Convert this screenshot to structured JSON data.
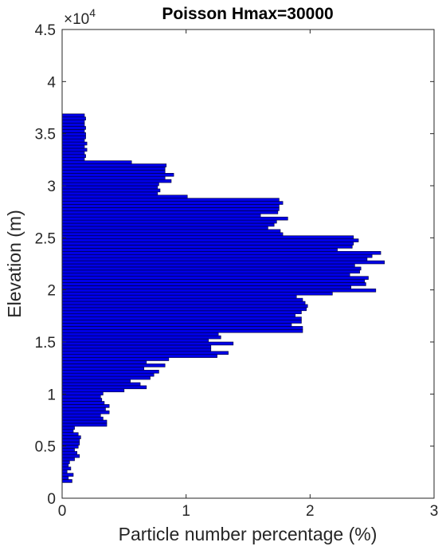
{
  "chart_data": {
    "type": "bar",
    "orientation": "horizontal",
    "title": "Poisson Hmax=30000",
    "xlabel": "Particle number percentage (%)",
    "ylabel": "Elevation (m)",
    "xlim": [
      0,
      3
    ],
    "ylim": [
      0,
      45000
    ],
    "x_ticks": [
      "0",
      "1",
      "2",
      "3"
    ],
    "y_ticks": [
      "0",
      "0.5",
      "1",
      "1.5",
      "2",
      "2.5",
      "3",
      "3.5",
      "4",
      "4.5"
    ],
    "y_tick_values": [
      0,
      5000,
      10000,
      15000,
      20000,
      25000,
      30000,
      35000,
      40000,
      45000
    ],
    "y_exponent_label": "×10",
    "y_exponent_power": "4",
    "bar_color": "#0000e6",
    "bar_edge_color": "#000033",
    "bar_height_m": 300,
    "grid": false,
    "box": true,
    "series": [
      {
        "elevations_m": [
          1650,
          1950,
          2250,
          2550,
          2850,
          3150,
          3450,
          3750,
          4050,
          4350,
          4650,
          4950,
          5250,
          5550,
          5850,
          6150,
          6450,
          6750,
          7050,
          7350,
          7650,
          7950,
          8250,
          8550,
          8850,
          9150,
          9450,
          9750,
          10050,
          10350,
          10650,
          10950,
          11250,
          11550,
          11850,
          12150,
          12450,
          12750,
          13050,
          13350,
          13650,
          13950,
          14250,
          14550,
          14850,
          15150,
          15450,
          15750,
          16050,
          16350,
          16650,
          16950,
          17250,
          17550,
          17850,
          18150,
          18450,
          18750,
          19050,
          19350,
          19650,
          19950,
          20250,
          20550,
          20850,
          21150,
          21450,
          21750,
          22050,
          22350,
          22650,
          22950,
          23250,
          23550,
          23850,
          24150,
          24450,
          24750,
          25050,
          25350,
          25650,
          25950,
          26250,
          26550,
          26850,
          27150,
          27450,
          27750,
          28050,
          28350,
          28650,
          28950,
          29250,
          29550,
          29850,
          30150,
          30450,
          30750,
          31050,
          31350,
          31650,
          31950,
          32250,
          32550,
          32850,
          33150,
          33450,
          33750,
          34050,
          34350,
          34650,
          34950,
          35250,
          35550,
          35850,
          36150,
          36450,
          36750
        ],
        "values": [
          0.08,
          0.05,
          0.09,
          0.04,
          0.07,
          0.05,
          0.06,
          0.1,
          0.14,
          0.12,
          0.1,
          0.13,
          0.14,
          0.14,
          0.15,
          0.13,
          0.09,
          0.1,
          0.36,
          0.36,
          0.33,
          0.31,
          0.38,
          0.35,
          0.38,
          0.34,
          0.32,
          0.31,
          0.33,
          0.5,
          0.68,
          0.63,
          0.55,
          0.71,
          0.74,
          0.78,
          0.66,
          0.83,
          0.68,
          0.86,
          1.25,
          1.34,
          1.2,
          1.2,
          1.38,
          1.18,
          1.28,
          1.26,
          1.94,
          1.94,
          1.85,
          1.93,
          1.93,
          1.88,
          1.93,
          1.97,
          1.98,
          1.96,
          1.94,
          1.89,
          2.18,
          2.53,
          2.33,
          2.45,
          2.44,
          2.47,
          2.32,
          2.4,
          2.41,
          2.36,
          2.6,
          2.46,
          2.5,
          2.57,
          2.22,
          2.34,
          2.35,
          2.39,
          2.35,
          1.78,
          1.76,
          1.66,
          1.71,
          1.73,
          1.82,
          1.6,
          1.74,
          1.75,
          1.75,
          1.78,
          1.75,
          1.01,
          0.77,
          0.79,
          0.77,
          0.78,
          0.88,
          0.83,
          0.9,
          0.83,
          0.83,
          0.84,
          0.56,
          0.18,
          0.19,
          0.18,
          0.2,
          0.18,
          0.2,
          0.18,
          0.19,
          0.19,
          0.18,
          0.19,
          0.18,
          0.18,
          0.19,
          0.18
        ]
      }
    ]
  }
}
